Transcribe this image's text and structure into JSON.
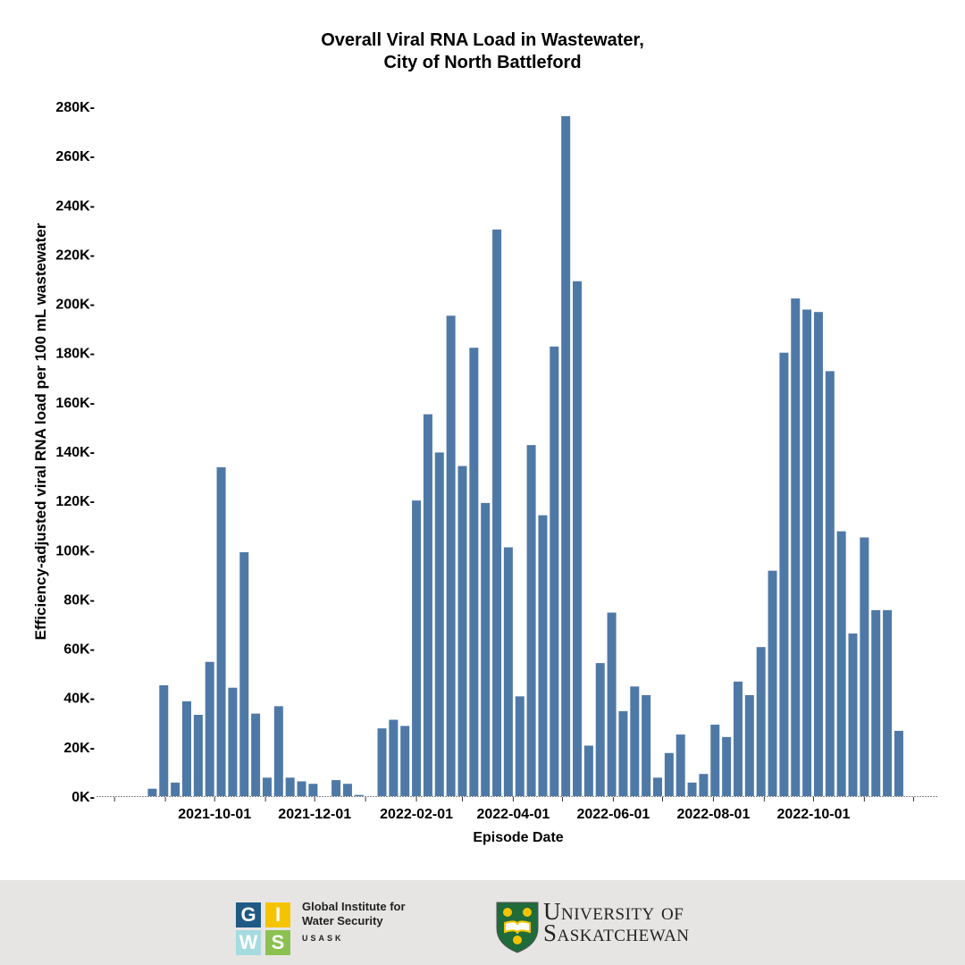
{
  "chart_data": {
    "type": "bar",
    "title": [
      "Overall Viral RNA Load in Wastewater,",
      "City of North Battleford"
    ],
    "xlabel": "Episode Date",
    "ylabel": "Efficiency-adjusted viral RNA load per 100 mL wastewater",
    "ylim": [
      0,
      280000
    ],
    "xlim": [
      "2021-07-21",
      "2022-12-16"
    ],
    "yticks": [
      0,
      20000,
      40000,
      60000,
      80000,
      100000,
      120000,
      140000,
      160000,
      180000,
      200000,
      220000,
      240000,
      260000,
      280000
    ],
    "ytick_labels": [
      "0K",
      "20K",
      "40K",
      "60K",
      "80K",
      "100K",
      "120K",
      "140K",
      "160K",
      "180K",
      "200K",
      "220K",
      "240K",
      "260K",
      "280K"
    ],
    "xtick_labels": [
      "2021-10-01",
      "2021-12-01",
      "2022-02-01",
      "2022-04-01",
      "2022-06-01",
      "2022-08-01",
      "2022-10-01"
    ],
    "grid": false,
    "bar_color": "#4e79a7",
    "x": [
      "2021-08-24",
      "2021-08-31",
      "2021-09-07",
      "2021-09-14",
      "2021-09-21",
      "2021-09-28",
      "2021-10-05",
      "2021-10-12",
      "2021-10-19",
      "2021-10-26",
      "2021-11-02",
      "2021-11-09",
      "2021-11-16",
      "2021-11-23",
      "2021-11-30",
      "2021-12-14",
      "2021-12-21",
      "2021-12-28",
      "2022-01-11",
      "2022-01-18",
      "2022-01-25",
      "2022-02-01",
      "2022-02-08",
      "2022-02-15",
      "2022-02-22",
      "2022-03-01",
      "2022-03-08",
      "2022-03-15",
      "2022-03-22",
      "2022-03-29",
      "2022-04-05",
      "2022-04-12",
      "2022-04-19",
      "2022-04-26",
      "2022-05-03",
      "2022-05-10",
      "2022-05-17",
      "2022-05-24",
      "2022-05-31",
      "2022-06-07",
      "2022-06-14",
      "2022-06-21",
      "2022-06-28",
      "2022-07-05",
      "2022-07-12",
      "2022-07-19",
      "2022-07-26",
      "2022-08-02",
      "2022-08-09",
      "2022-08-16",
      "2022-08-23",
      "2022-08-30",
      "2022-09-06",
      "2022-09-13",
      "2022-09-20",
      "2022-09-27",
      "2022-10-04",
      "2022-10-11",
      "2022-10-18",
      "2022-10-25",
      "2022-11-01",
      "2022-11-08",
      "2022-11-15",
      "2022-11-22"
    ],
    "values": [
      3000,
      45000,
      5500,
      38500,
      33000,
      54500,
      133500,
      44000,
      99000,
      33500,
      7500,
      36500,
      7500,
      6000,
      5000,
      6500,
      5000,
      500,
      27500,
      31000,
      28500,
      120000,
      155000,
      139500,
      195000,
      134000,
      182000,
      119000,
      230000,
      101000,
      40500,
      142500,
      114000,
      182500,
      276000,
      209000,
      20500,
      54000,
      74500,
      34500,
      44500,
      41000,
      7500,
      17500,
      25000,
      5500,
      9000,
      29000,
      24000,
      46500,
      41000,
      60500,
      91500,
      180000,
      202000,
      197500,
      196500,
      172500,
      107500,
      66000,
      105000,
      75500,
      75500,
      26500
    ]
  },
  "footer": {
    "giws_letters": [
      "G",
      "I",
      "W",
      "S"
    ],
    "giws_name": [
      "Global Institute for",
      "Water Security"
    ],
    "giws_sub": "USASK",
    "university": [
      "University of",
      "Saskatchewan"
    ],
    "colors": {
      "g": "#1f5a85",
      "i": "#f5c400",
      "w": "#a6dbe0",
      "s": "#8cc152",
      "shield": "#1f6b3a"
    }
  }
}
